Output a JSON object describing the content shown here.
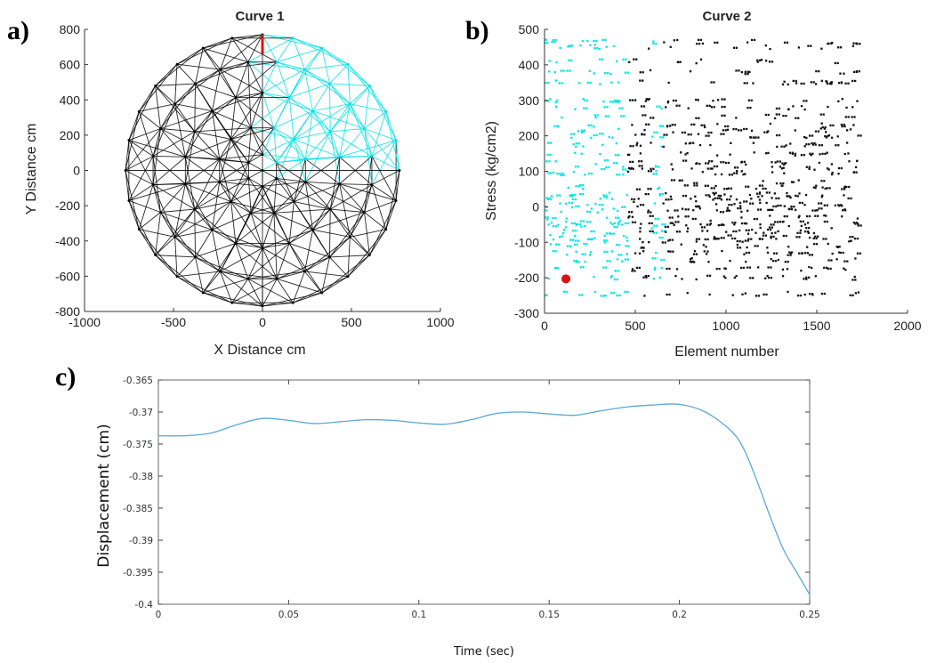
{
  "panels": {
    "a": {
      "letter": "a)"
    },
    "b": {
      "letter": "b)"
    },
    "c": {
      "letter": "c)"
    }
  },
  "chart_data": [
    {
      "id": "a",
      "type": "scatter",
      "title": "Curve 1",
      "xlabel": "X Distance cm",
      "ylabel": "Y Distance cm",
      "xlim": [
        -1000,
        1000
      ],
      "ylim": [
        -800,
        800
      ],
      "xticks": [
        -1000,
        -500,
        0,
        500,
        1000
      ],
      "yticks": [
        -800,
        -600,
        -400,
        -200,
        0,
        200,
        400,
        600,
        800
      ],
      "grid": false,
      "description_type": "circular truss mesh",
      "mesh": {
        "radius": 770,
        "rings": [
          770,
          620,
          440,
          250,
          90
        ],
        "nodes_per_ring": [
          28,
          24,
          18,
          12,
          6
        ]
      },
      "highlighted_member": {
        "x1": 0,
        "y1": 770,
        "x2": 0,
        "y2": 660
      },
      "colors": {
        "mesh": "#000000",
        "quadrant": "#00e0e6",
        "highlight": "#e01010"
      }
    },
    {
      "id": "b",
      "type": "scatter",
      "title": "Curve 2",
      "xlabel": "Element number",
      "ylabel": "Stress (kg/cm2)",
      "xlim": [
        0,
        2000
      ],
      "ylim": [
        -300,
        500
      ],
      "xticks": [
        0,
        500,
        1000,
        1500,
        2000
      ],
      "yticks": [
        -300,
        -200,
        -100,
        0,
        100,
        200,
        300,
        400,
        500
      ],
      "grid": false,
      "highlight_point": {
        "x": 118,
        "y": -203
      },
      "groups": [
        {
          "color": "cyan",
          "x_ranges": [
            [
              0,
              110
            ],
            [
              115,
              260
            ],
            [
              270,
              460
            ],
            [
              590,
              650
            ]
          ]
        },
        {
          "color": "black",
          "x_ranges": [
            [
              460,
              590
            ],
            [
              650,
              1730
            ]
          ]
        }
      ],
      "colors": {
        "cyan": "#00e6e6",
        "black": "#111111",
        "highlight": "#e01010"
      }
    },
    {
      "id": "c",
      "type": "line",
      "title": "",
      "xlabel": "Time (sec)",
      "ylabel": "Displacement (cm)",
      "xlim": [
        0,
        0.25
      ],
      "ylim": [
        -0.4,
        -0.365
      ],
      "xticks": [
        "0",
        "0.05",
        "0.1",
        "0.15",
        "0.2",
        "0.25"
      ],
      "yticks": [
        "-0.365",
        "-0.37",
        "-0.375",
        "-0.38",
        "-0.385",
        "-0.39",
        "-0.395",
        "-0.4"
      ],
      "grid": false,
      "series": [
        {
          "color": "#5aa9d6",
          "x": [
            0,
            0.01,
            0.02,
            0.03,
            0.04,
            0.05,
            0.06,
            0.07,
            0.08,
            0.09,
            0.1,
            0.11,
            0.12,
            0.13,
            0.14,
            0.15,
            0.16,
            0.17,
            0.18,
            0.19,
            0.2,
            0.21,
            0.22,
            0.225,
            0.23,
            0.235,
            0.24,
            0.245,
            0.25
          ],
          "y": [
            -0.3737,
            -0.3737,
            -0.3733,
            -0.372,
            -0.371,
            -0.3713,
            -0.3718,
            -0.3715,
            -0.3712,
            -0.3713,
            -0.3717,
            -0.3719,
            -0.3712,
            -0.3702,
            -0.37,
            -0.3703,
            -0.3705,
            -0.3698,
            -0.3692,
            -0.3689,
            -0.3688,
            -0.37,
            -0.373,
            -0.376,
            -0.381,
            -0.3865,
            -0.3915,
            -0.395,
            -0.3985
          ]
        }
      ]
    }
  ]
}
